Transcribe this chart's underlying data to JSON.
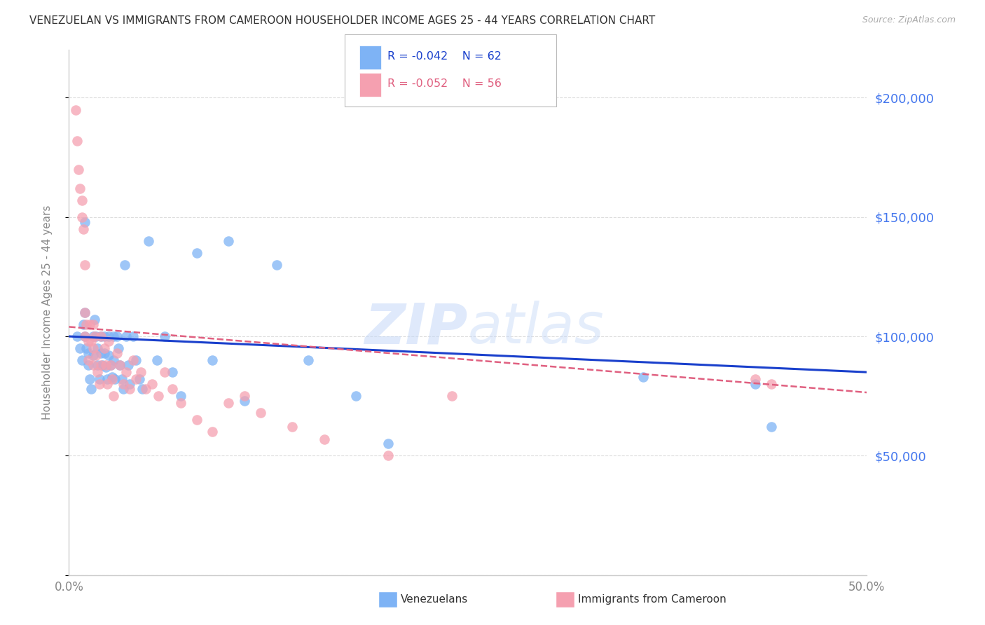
{
  "title": "VENEZUELAN VS IMMIGRANTS FROM CAMEROON HOUSEHOLDER INCOME AGES 25 - 44 YEARS CORRELATION CHART",
  "source": "Source: ZipAtlas.com",
  "ylabel": "Householder Income Ages 25 - 44 years",
  "xlim": [
    0.0,
    0.5
  ],
  "ylim": [
    0,
    220000
  ],
  "yticks": [
    0,
    50000,
    100000,
    150000,
    200000
  ],
  "ytick_labels": [
    "",
    "$50,000",
    "$100,000",
    "$150,000",
    "$200,000"
  ],
  "xticks": [
    0.0,
    0.1,
    0.2,
    0.3,
    0.4,
    0.5
  ],
  "xtick_labels": [
    "0.0%",
    "",
    "",
    "",
    "",
    "50.0%"
  ],
  "watermark": "ZIPatlas",
  "blue_color": "#7eb3f5",
  "pink_color": "#f5a0b0",
  "blue_line_color": "#1a40cc",
  "pink_line_color": "#e06080",
  "axis_color": "#cccccc",
  "grid_color": "#dddddd",
  "title_color": "#333333",
  "source_color": "#aaaaaa",
  "ylabel_color": "#888888",
  "tick_label_color_y": "#4477ee",
  "tick_label_color_x": "#888888",
  "venezuelans_x": [
    0.005,
    0.007,
    0.008,
    0.009,
    0.01,
    0.01,
    0.01,
    0.011,
    0.012,
    0.012,
    0.013,
    0.014,
    0.015,
    0.015,
    0.016,
    0.017,
    0.018,
    0.018,
    0.019,
    0.02,
    0.02,
    0.021,
    0.022,
    0.022,
    0.023,
    0.024,
    0.025,
    0.025,
    0.026,
    0.027,
    0.028,
    0.028,
    0.029,
    0.03,
    0.031,
    0.032,
    0.033,
    0.034,
    0.035,
    0.036,
    0.037,
    0.038,
    0.04,
    0.042,
    0.044,
    0.046,
    0.05,
    0.055,
    0.06,
    0.065,
    0.07,
    0.08,
    0.09,
    0.1,
    0.11,
    0.13,
    0.15,
    0.18,
    0.2,
    0.36,
    0.43,
    0.44
  ],
  "venezuelans_y": [
    100000,
    95000,
    90000,
    105000,
    148000,
    110000,
    100000,
    95000,
    93000,
    88000,
    82000,
    78000,
    100000,
    92000,
    107000,
    100000,
    95000,
    88000,
    82000,
    100000,
    93000,
    88000,
    100000,
    93000,
    87000,
    82000,
    100000,
    92000,
    88000,
    83000,
    100000,
    90000,
    82000,
    100000,
    95000,
    88000,
    82000,
    78000,
    130000,
    100000,
    88000,
    80000,
    100000,
    90000,
    82000,
    78000,
    140000,
    90000,
    100000,
    85000,
    75000,
    135000,
    90000,
    140000,
    73000,
    130000,
    90000,
    75000,
    55000,
    83000,
    80000,
    62000
  ],
  "cameroon_x": [
    0.004,
    0.005,
    0.006,
    0.007,
    0.008,
    0.008,
    0.009,
    0.01,
    0.01,
    0.01,
    0.011,
    0.012,
    0.012,
    0.013,
    0.014,
    0.015,
    0.015,
    0.015,
    0.016,
    0.017,
    0.018,
    0.019,
    0.02,
    0.02,
    0.022,
    0.023,
    0.024,
    0.025,
    0.026,
    0.027,
    0.028,
    0.03,
    0.032,
    0.034,
    0.036,
    0.038,
    0.04,
    0.042,
    0.045,
    0.048,
    0.052,
    0.056,
    0.06,
    0.065,
    0.07,
    0.08,
    0.09,
    0.1,
    0.11,
    0.12,
    0.14,
    0.16,
    0.2,
    0.24,
    0.43,
    0.44
  ],
  "cameroon_y": [
    195000,
    182000,
    170000,
    162000,
    157000,
    150000,
    145000,
    130000,
    110000,
    100000,
    105000,
    98000,
    90000,
    105000,
    98000,
    105000,
    95000,
    88000,
    100000,
    92000,
    85000,
    80000,
    100000,
    88000,
    95000,
    88000,
    80000,
    98000,
    88000,
    82000,
    75000,
    93000,
    88000,
    80000,
    85000,
    78000,
    90000,
    82000,
    85000,
    78000,
    80000,
    75000,
    85000,
    78000,
    72000,
    65000,
    60000,
    72000,
    75000,
    68000,
    62000,
    57000,
    50000,
    75000,
    82000,
    80000
  ]
}
